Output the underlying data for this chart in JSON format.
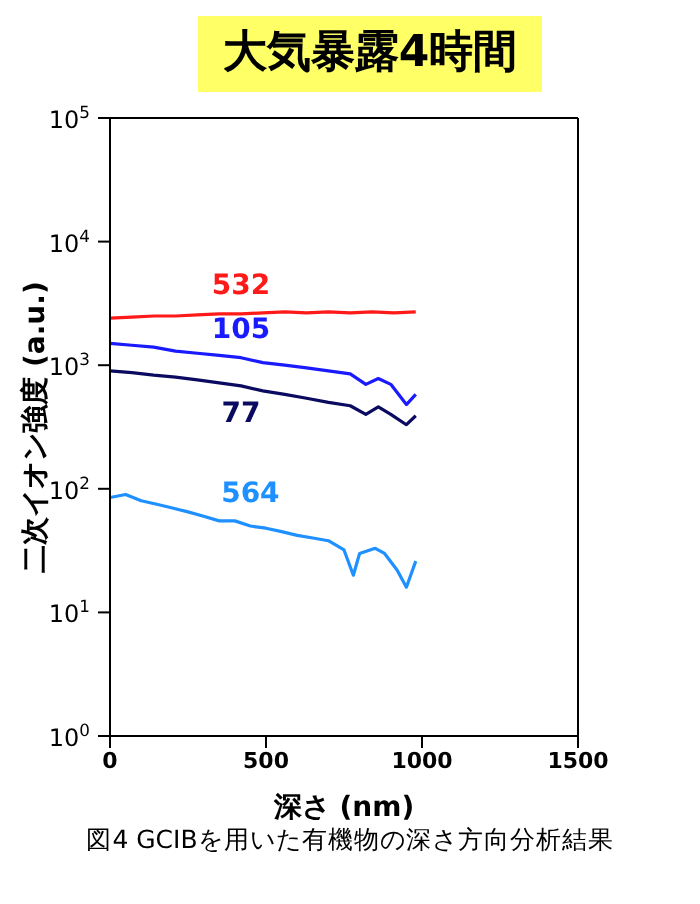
{
  "chart_data": {
    "type": "line",
    "title": "大気暴露4時間",
    "xlabel": "深さ (nm)",
    "ylabel": "二次イオン強度 (a.u.)",
    "annotations": [
      "図4 GCIBを用いた有機物の深さ方向分析結果"
    ],
    "log": "y",
    "marker": "none",
    "line_style": "solid",
    "xlim": [
      0,
      1500
    ],
    "xticks": [
      0,
      500,
      1000,
      1500
    ],
    "ylim": [
      1,
      100000
    ],
    "yticks": [
      {
        "value": 1,
        "label": "10$^{0}$"
      },
      {
        "value": 10,
        "label": "10$^{1}$"
      },
      {
        "value": 100,
        "label": "10$^{2}$"
      },
      {
        "value": 1000,
        "label": "10$^{3}$"
      },
      {
        "value": 10000,
        "label": "10$^{4}$"
      },
      {
        "value": 100000,
        "label": "10$^{5}$"
      }
    ],
    "series": [
      {
        "name": "532",
        "color": "#ff1a1a",
        "x": [
          0,
          70,
          140,
          210,
          280,
          350,
          420,
          490,
          560,
          630,
          700,
          770,
          840,
          910,
          980
        ],
        "values": [
          2400,
          2450,
          2500,
          2500,
          2550,
          2600,
          2600,
          2650,
          2700,
          2650,
          2700,
          2650,
          2700,
          2650,
          2700
        ]
      },
      {
        "name": "105",
        "color": "#1a1aff",
        "x": [
          0,
          70,
          140,
          210,
          280,
          350,
          420,
          490,
          560,
          630,
          700,
          770,
          820,
          860,
          900,
          950,
          980
        ],
        "values": [
          1500,
          1450,
          1400,
          1300,
          1250,
          1200,
          1150,
          1050,
          1000,
          950,
          900,
          850,
          700,
          780,
          700,
          480,
          580
        ]
      },
      {
        "name": "77",
        "color": "#0a0a60",
        "x": [
          0,
          70,
          140,
          210,
          280,
          350,
          420,
          490,
          560,
          630,
          700,
          770,
          820,
          860,
          900,
          950,
          980
        ],
        "values": [
          900,
          870,
          830,
          800,
          760,
          720,
          680,
          620,
          580,
          540,
          500,
          470,
          400,
          460,
          400,
          330,
          390
        ]
      },
      {
        "name": "564",
        "color": "#1e90ff",
        "x": [
          0,
          50,
          100,
          150,
          200,
          250,
          300,
          350,
          400,
          450,
          500,
          550,
          600,
          650,
          700,
          750,
          780,
          800,
          850,
          880,
          920,
          950,
          980
        ],
        "values": [
          85,
          90,
          80,
          75,
          70,
          65,
          60,
          55,
          55,
          50,
          48,
          45,
          42,
          40,
          38,
          32,
          20,
          30,
          33,
          30,
          22,
          16,
          26
        ]
      }
    ]
  }
}
